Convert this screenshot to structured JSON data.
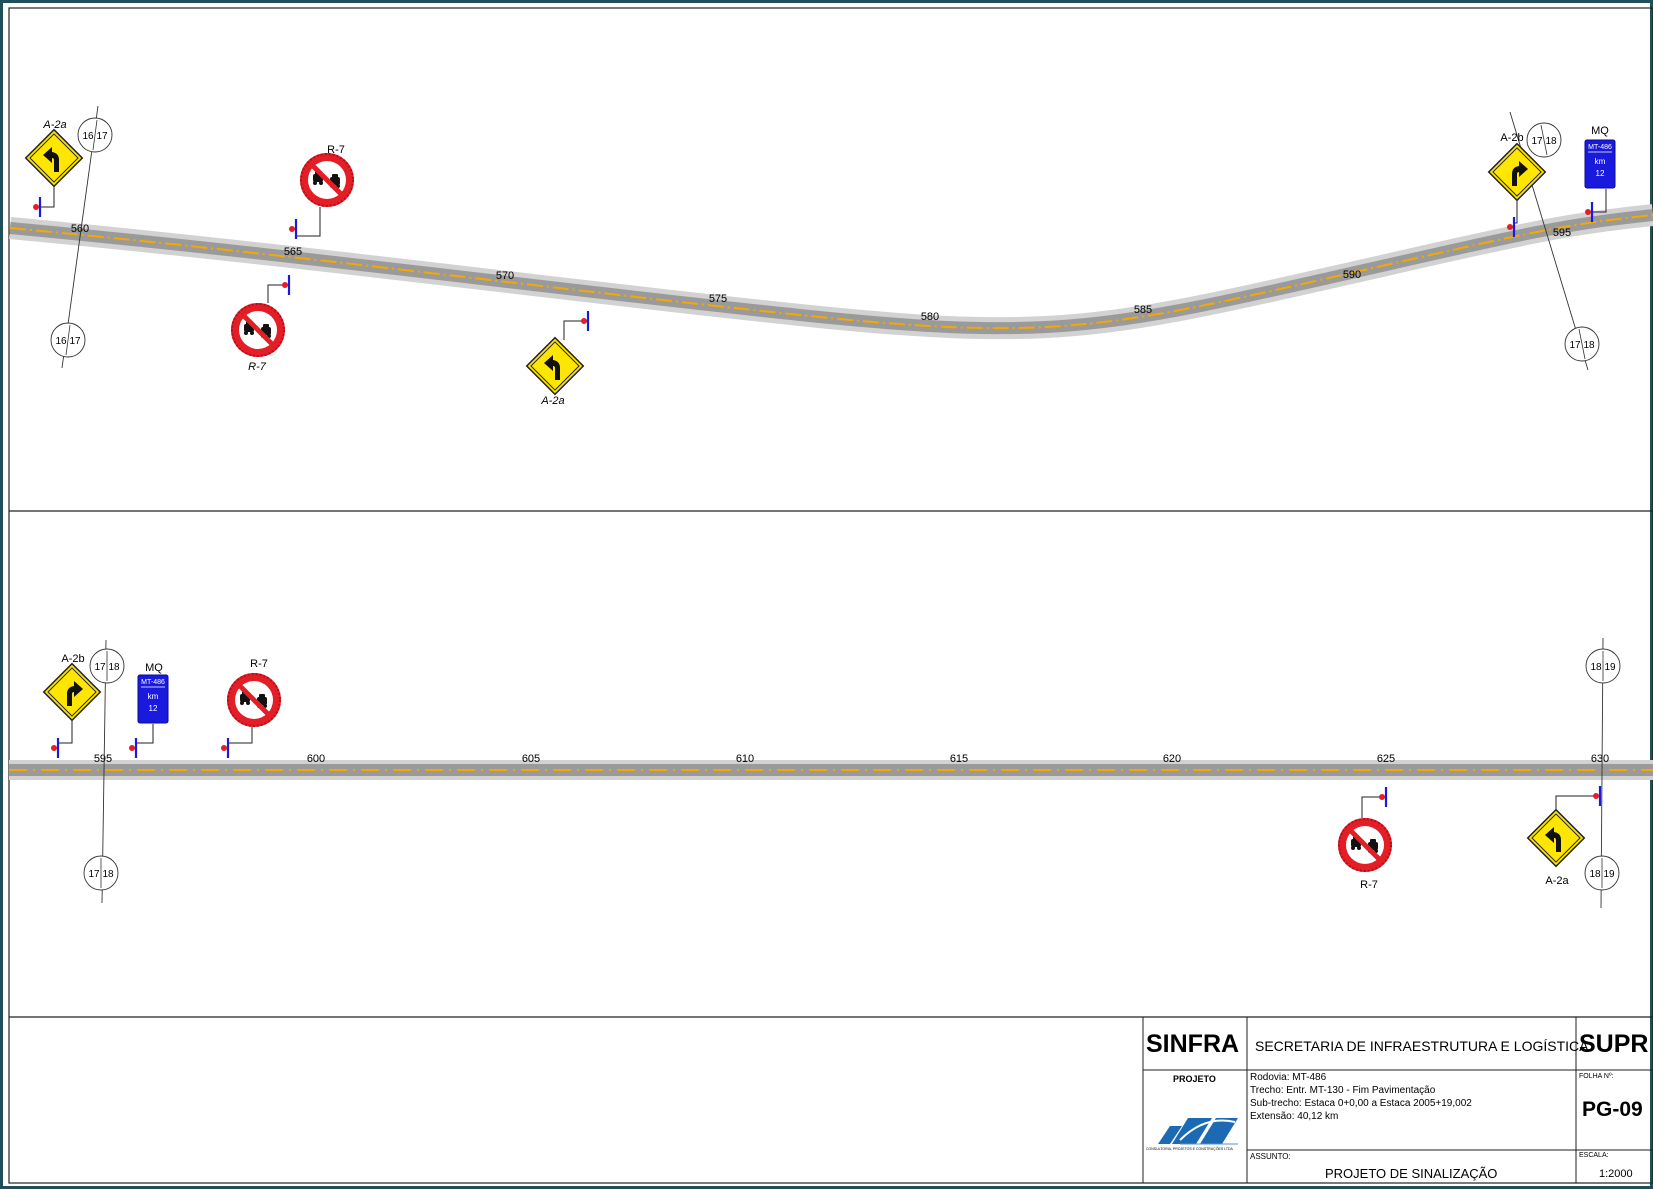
{
  "panel_top": {
    "stations": [
      "560",
      "565",
      "570",
      "575",
      "580",
      "585",
      "590",
      "595"
    ],
    "match_lines": [
      {
        "top_label_left": "16",
        "top_label_right": "17",
        "bottom_label_left": "16",
        "bottom_label_right": "17"
      },
      {
        "top_label_left": "17",
        "top_label_right": "18",
        "bottom_label_left": "17",
        "bottom_label_right": "18"
      }
    ],
    "signs": [
      {
        "code": "A-2a",
        "type": "curve-left"
      },
      {
        "code": "R-7",
        "type": "no-overtaking"
      },
      {
        "code": "R-7",
        "type": "no-overtaking"
      },
      {
        "code": "A-2a",
        "type": "curve-left"
      },
      {
        "code": "A-2b",
        "type": "curve-right"
      },
      {
        "code": "MQ",
        "type": "km-marker",
        "lines": [
          "MT-486",
          "km",
          "12"
        ]
      }
    ]
  },
  "panel_bottom": {
    "stations": [
      "595",
      "600",
      "605",
      "610",
      "615",
      "620",
      "625",
      "630"
    ],
    "match_lines": [
      {
        "top_label_left": "17",
        "top_label_right": "18",
        "bottom_label_left": "17",
        "bottom_label_right": "18"
      },
      {
        "top_label_left": "18",
        "top_label_right": "19",
        "bottom_label_left": "18",
        "bottom_label_right": "19"
      }
    ],
    "signs": [
      {
        "code": "A-2b",
        "type": "curve-right"
      },
      {
        "code": "MQ",
        "type": "km-marker",
        "lines": [
          "MT-486",
          "km",
          "12"
        ]
      },
      {
        "code": "R-7",
        "type": "no-overtaking"
      },
      {
        "code": "R-7",
        "type": "no-overtaking"
      },
      {
        "code": "A-2a",
        "type": "curve-left"
      }
    ]
  },
  "title_block": {
    "agency_short": "SINFRA",
    "agency_full": "SECRETARIA DE INFRAESTRUTURA E LOGÍSTICA",
    "agency_right": "SUPR",
    "projeto_label": "PROJETO",
    "company_caption": "CONSULTORIA, PROJETOS E CONSTRUÇÕES LTDA",
    "rodovia": "Rodovia: MT-486",
    "trecho": "Trecho: Entr. MT-130 - Fim Pavimentação",
    "subtrecho": "Sub-trecho: Estaca 0+0,00 a Estaca 2005+19,002",
    "extensao": "Extensão: 40,12 km",
    "folha_label": "FOLHA Nº:",
    "folha_value": "PG-09",
    "assunto_label": "ASSUNTO:",
    "assunto_value": "PROJETO DE SINALIZAÇÃO",
    "escala_label": "ESCALA:",
    "escala_value": "1:2000"
  },
  "colors": {
    "border": "#1f4f5a",
    "road": "#9a9a9a",
    "road_edge": "#d2d2d2",
    "centerline": "#f5a800",
    "warning_yellow": "#ffe600",
    "prohibition_red": "#e41e26",
    "marker_blue": "#1a1adf",
    "post_red": "#e41e26",
    "post_blue": "#1a1adf"
  }
}
